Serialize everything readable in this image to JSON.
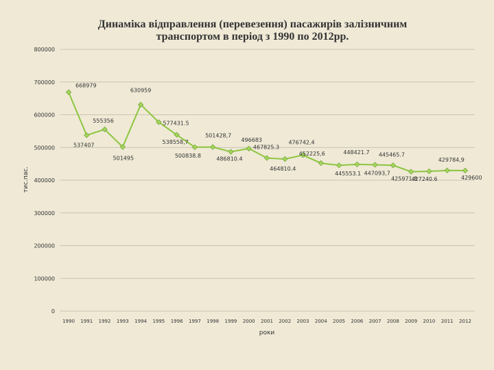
{
  "chart_data": {
    "type": "line",
    "title_line1": "Динаміка відправлення (перевезення) пасажирів залізничним",
    "title_line2": "транспортом в період з 1990 по 2012рр.",
    "xlabel": "роки",
    "ylabel": "тис.пас.",
    "ylim": [
      0,
      800000
    ],
    "yticks": [
      "0",
      "100000",
      "200000",
      "300000",
      "400000",
      "500000",
      "600000",
      "700000",
      "800000"
    ],
    "categories": [
      "1990",
      "1991",
      "1992",
      "1993",
      "1994",
      "1995",
      "1996",
      "1997",
      "1998",
      "1999",
      "2000",
      "2001",
      "2002",
      "2003",
      "2004",
      "2005",
      "2006",
      "2007",
      "2008",
      "2009",
      "2010",
      "2011",
      "2012"
    ],
    "values": [
      668979,
      537407,
      555356,
      501495,
      630959,
      577431.5,
      538558.7,
      500838.8,
      501428.7,
      486810.4,
      496683,
      467825.3,
      464810.4,
      476742.4,
      452225.6,
      445553.1,
      448421.7,
      447093.7,
      445465.7,
      425971.8,
      427240.6,
      429784.9,
      429600
    ],
    "data_labels": [
      "668979",
      "537407",
      "555356",
      "501495",
      "630959",
      "577431.5",
      "538558,7",
      "500838.8",
      "501428,7",
      "486810.4",
      "496683",
      "467825.3",
      "464810.4",
      "476742,4",
      "452225,6",
      "445553.1",
      "448421.7",
      "447093,7",
      "445465.7",
      "425971.8",
      "427240.6",
      "429784,9",
      "429600"
    ],
    "grid": true,
    "legend": false,
    "colors": {
      "background": "#efe9d6",
      "line": "#8dc63f",
      "marker": "#a4d65e",
      "marker_stroke": "#7aa83a",
      "grid": "#bdb7a5",
      "text": "#333333"
    }
  }
}
